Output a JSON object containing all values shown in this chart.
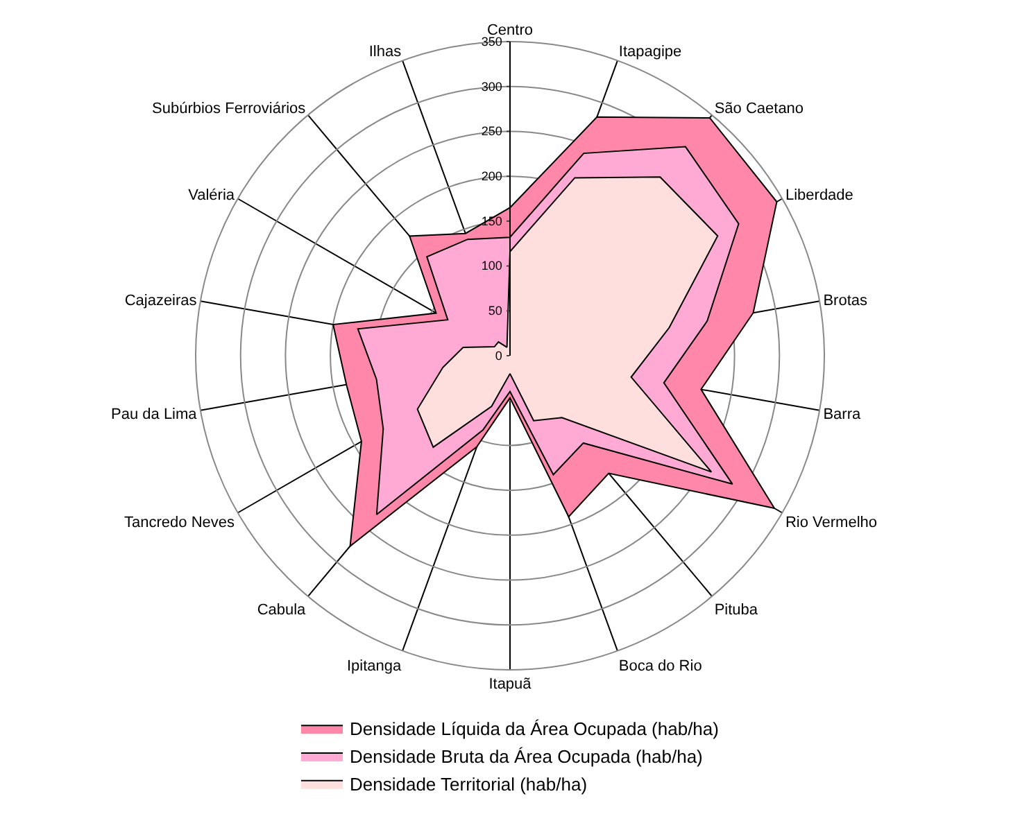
{
  "chart_data": {
    "type": "radar",
    "categories": [
      "Centro",
      "Itapagipe",
      "São Caetano",
      "Liberdade",
      "Brotas",
      "Barra",
      "Rio Vermelho",
      "Pituba",
      "Boca do Rio",
      "Itapuã",
      "Ipitanga",
      "Cabula",
      "Tancredo Neves",
      "Pau da Lima",
      "Cajazeiras",
      "Valéria",
      "Subúrbios Ferroviários",
      "Ilhas"
    ],
    "series": [
      {
        "name": "Densidade Líquida da Área Ocupada (hab/ha)",
        "color": "#ff88aa",
        "values": [
          165,
          283,
          346,
          343,
          275,
          216,
          340,
          171,
          191,
          47,
          108,
          277,
          191,
          185,
          200,
          95,
          174,
          145
        ]
      },
      {
        "name": "Densidade Bruta da Área Ocupada (hab/ha)",
        "color": "#ffaad4",
        "values": [
          132,
          240,
          304,
          294,
          223,
          174,
          286,
          127,
          141,
          40,
          88,
          231,
          163,
          151,
          172,
          80,
          144,
          138
        ]
      },
      {
        "name": "Densidade Territorial (hab/ha)",
        "color": "#ffdede",
        "values": [
          116,
          211,
          260,
          267,
          180,
          137,
          259,
          90,
          77,
          20,
          60,
          133,
          119,
          76,
          53,
          20,
          20,
          10
        ]
      }
    ],
    "ylim": [
      0,
      350
    ],
    "yticks": [
      0,
      50,
      100,
      150,
      200,
      250,
      300,
      350
    ],
    "grid": true,
    "legend": "bottom"
  }
}
